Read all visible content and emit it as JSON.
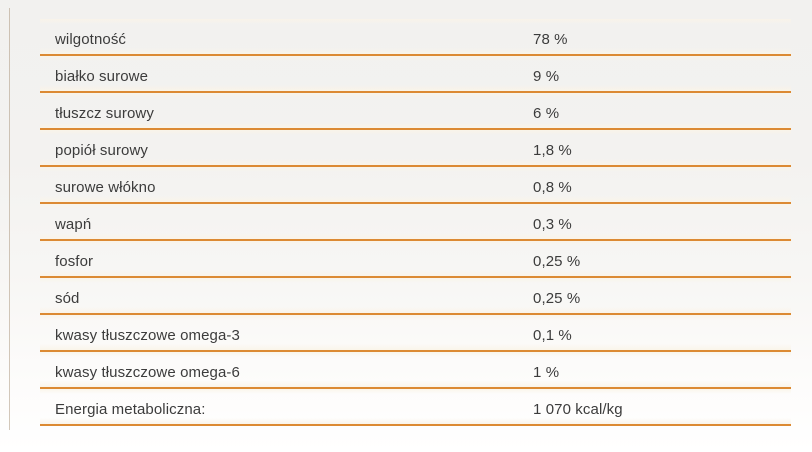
{
  "accent_color": "#dc8a33",
  "text_color": "#3c3c3c",
  "table": {
    "rows": [
      {
        "label": "wilgotność",
        "value": "78 %"
      },
      {
        "label": "białko surowe",
        "value": "9 %"
      },
      {
        "label": "tłuszcz surowy",
        "value": "6 %"
      },
      {
        "label": "popiół surowy",
        "value": "1,8 %"
      },
      {
        "label": "surowe włókno",
        "value": "0,8 %"
      },
      {
        "label": "wapń",
        "value": "0,3 %"
      },
      {
        "label": "fosfor",
        "value": "0,25 %"
      },
      {
        "label": "sód",
        "value": "0,25 %"
      },
      {
        "label": "kwasy tłuszczowe omega-3",
        "value": "0,1 %"
      },
      {
        "label": "kwasy tłuszczowe omega-6",
        "value": "1 %"
      },
      {
        "label": "Energia metaboliczna:",
        "value": "1 070 kcal/kg"
      }
    ]
  }
}
